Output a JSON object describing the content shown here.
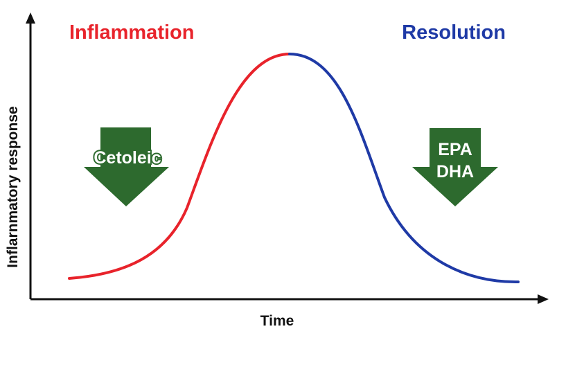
{
  "phases": {
    "inflammation": "Inflammation",
    "resolution": "Resolution"
  },
  "axes": {
    "x_label": "Time",
    "y_label": "Inflarnmatory response"
  },
  "arrows": {
    "left": {
      "line1": "Cetoleic"
    },
    "right": {
      "line1": "EPA",
      "line2": "DHA"
    }
  },
  "colors": {
    "inflammation": "#e8232b",
    "resolution": "#1f3aa6",
    "arrow": "#2d6a2e",
    "axis": "#111111"
  }
}
